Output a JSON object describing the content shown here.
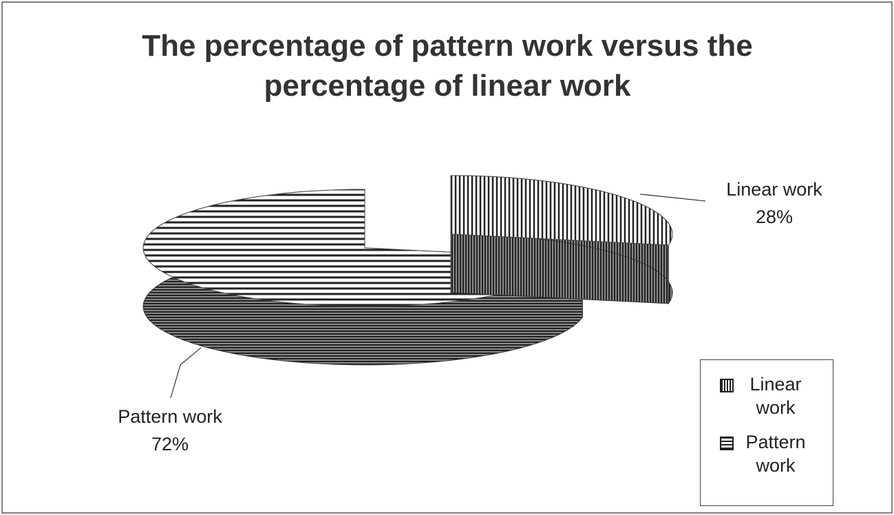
{
  "chart_data": {
    "type": "pie",
    "title": "The percentage of pattern work versus the percentage of linear work",
    "categories": [
      "Linear work",
      "Pattern work"
    ],
    "values": [
      28,
      72
    ],
    "value_labels": [
      "28%",
      "72%"
    ],
    "colors": [
      "#222222",
      "#222222"
    ],
    "legend": "bottom-right"
  }
}
